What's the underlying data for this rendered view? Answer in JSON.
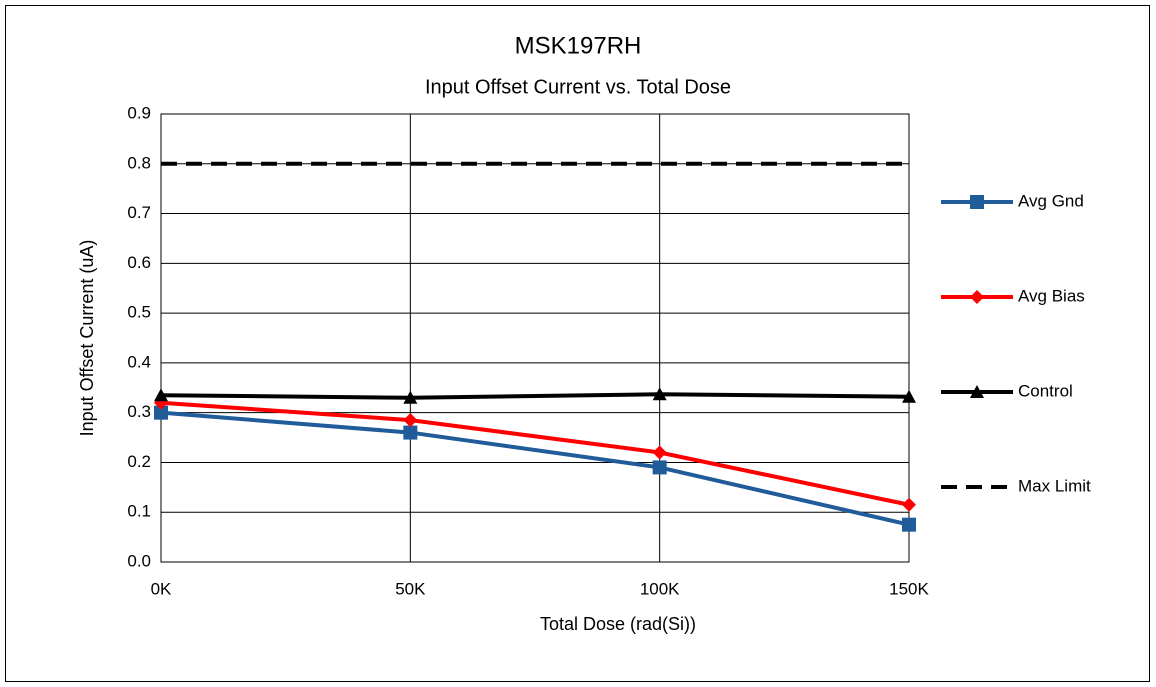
{
  "chart_data": {
    "type": "line",
    "title": "MSK197RH",
    "subtitle": "Input Offset Current vs. Total Dose",
    "x_label": "Total Dose (rad(Si))",
    "y_label": "Input Offset Current (uA)",
    "categories": [
      "0K",
      "50K",
      "100K",
      "150K"
    ],
    "ylim": [
      0,
      0.9
    ],
    "yticks": [
      {
        "value": 0,
        "label": "0.0"
      },
      0.1,
      0.2,
      0.3,
      0.4,
      0.5,
      0.6,
      0.7,
      0.8,
      0.9
    ],
    "grid": true,
    "legend": "right",
    "series": [
      {
        "name": "Avg Gnd",
        "color": "#1f5c99",
        "marker": "square",
        "values": [
          0.3,
          0.26,
          0.19,
          0.075
        ]
      },
      {
        "name": "Avg Bias",
        "color": "#ff0000",
        "marker": "diamond",
        "values": [
          0.32,
          0.285,
          0.22,
          0.115
        ]
      },
      {
        "name": "Control",
        "color": "#000000",
        "marker": "triangle",
        "values": [
          0.335,
          0.33,
          0.337,
          0.332
        ]
      },
      {
        "name": "Max Limit",
        "color": "#000000",
        "marker": "none",
        "dashed": true,
        "values": [
          0.8,
          0.8,
          0.8,
          0.8
        ]
      }
    ]
  }
}
